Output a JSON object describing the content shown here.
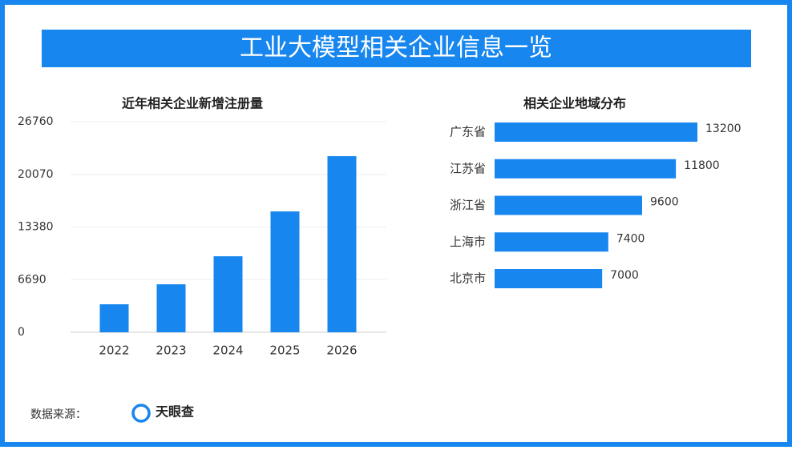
{
  "header": {
    "title": "工业大模型相关企业信息一览"
  },
  "chart_data": [
    {
      "type": "bar",
      "title": "近年相关企业新增注册量",
      "categories": [
        "2022",
        "2023",
        "2024",
        "2025",
        "2026"
      ],
      "values": [
        3560,
        6100,
        9660,
        15360,
        22380
      ],
      "color": "#1786ee",
      "ylim": [
        0,
        26760
      ],
      "yticks": [
        0,
        6690,
        13380,
        20070,
        26760
      ],
      "grid": true
    },
    {
      "type": "hbar",
      "title": "相关企业地域分布",
      "categories": [
        "广东省",
        "江苏省",
        "浙江省",
        "上海市",
        "北京市"
      ],
      "values": [
        13200,
        11800,
        9600,
        7400,
        7000
      ],
      "color": "#1786ee"
    }
  ],
  "source": {
    "label": "数据来源：",
    "name": "天眼查"
  }
}
